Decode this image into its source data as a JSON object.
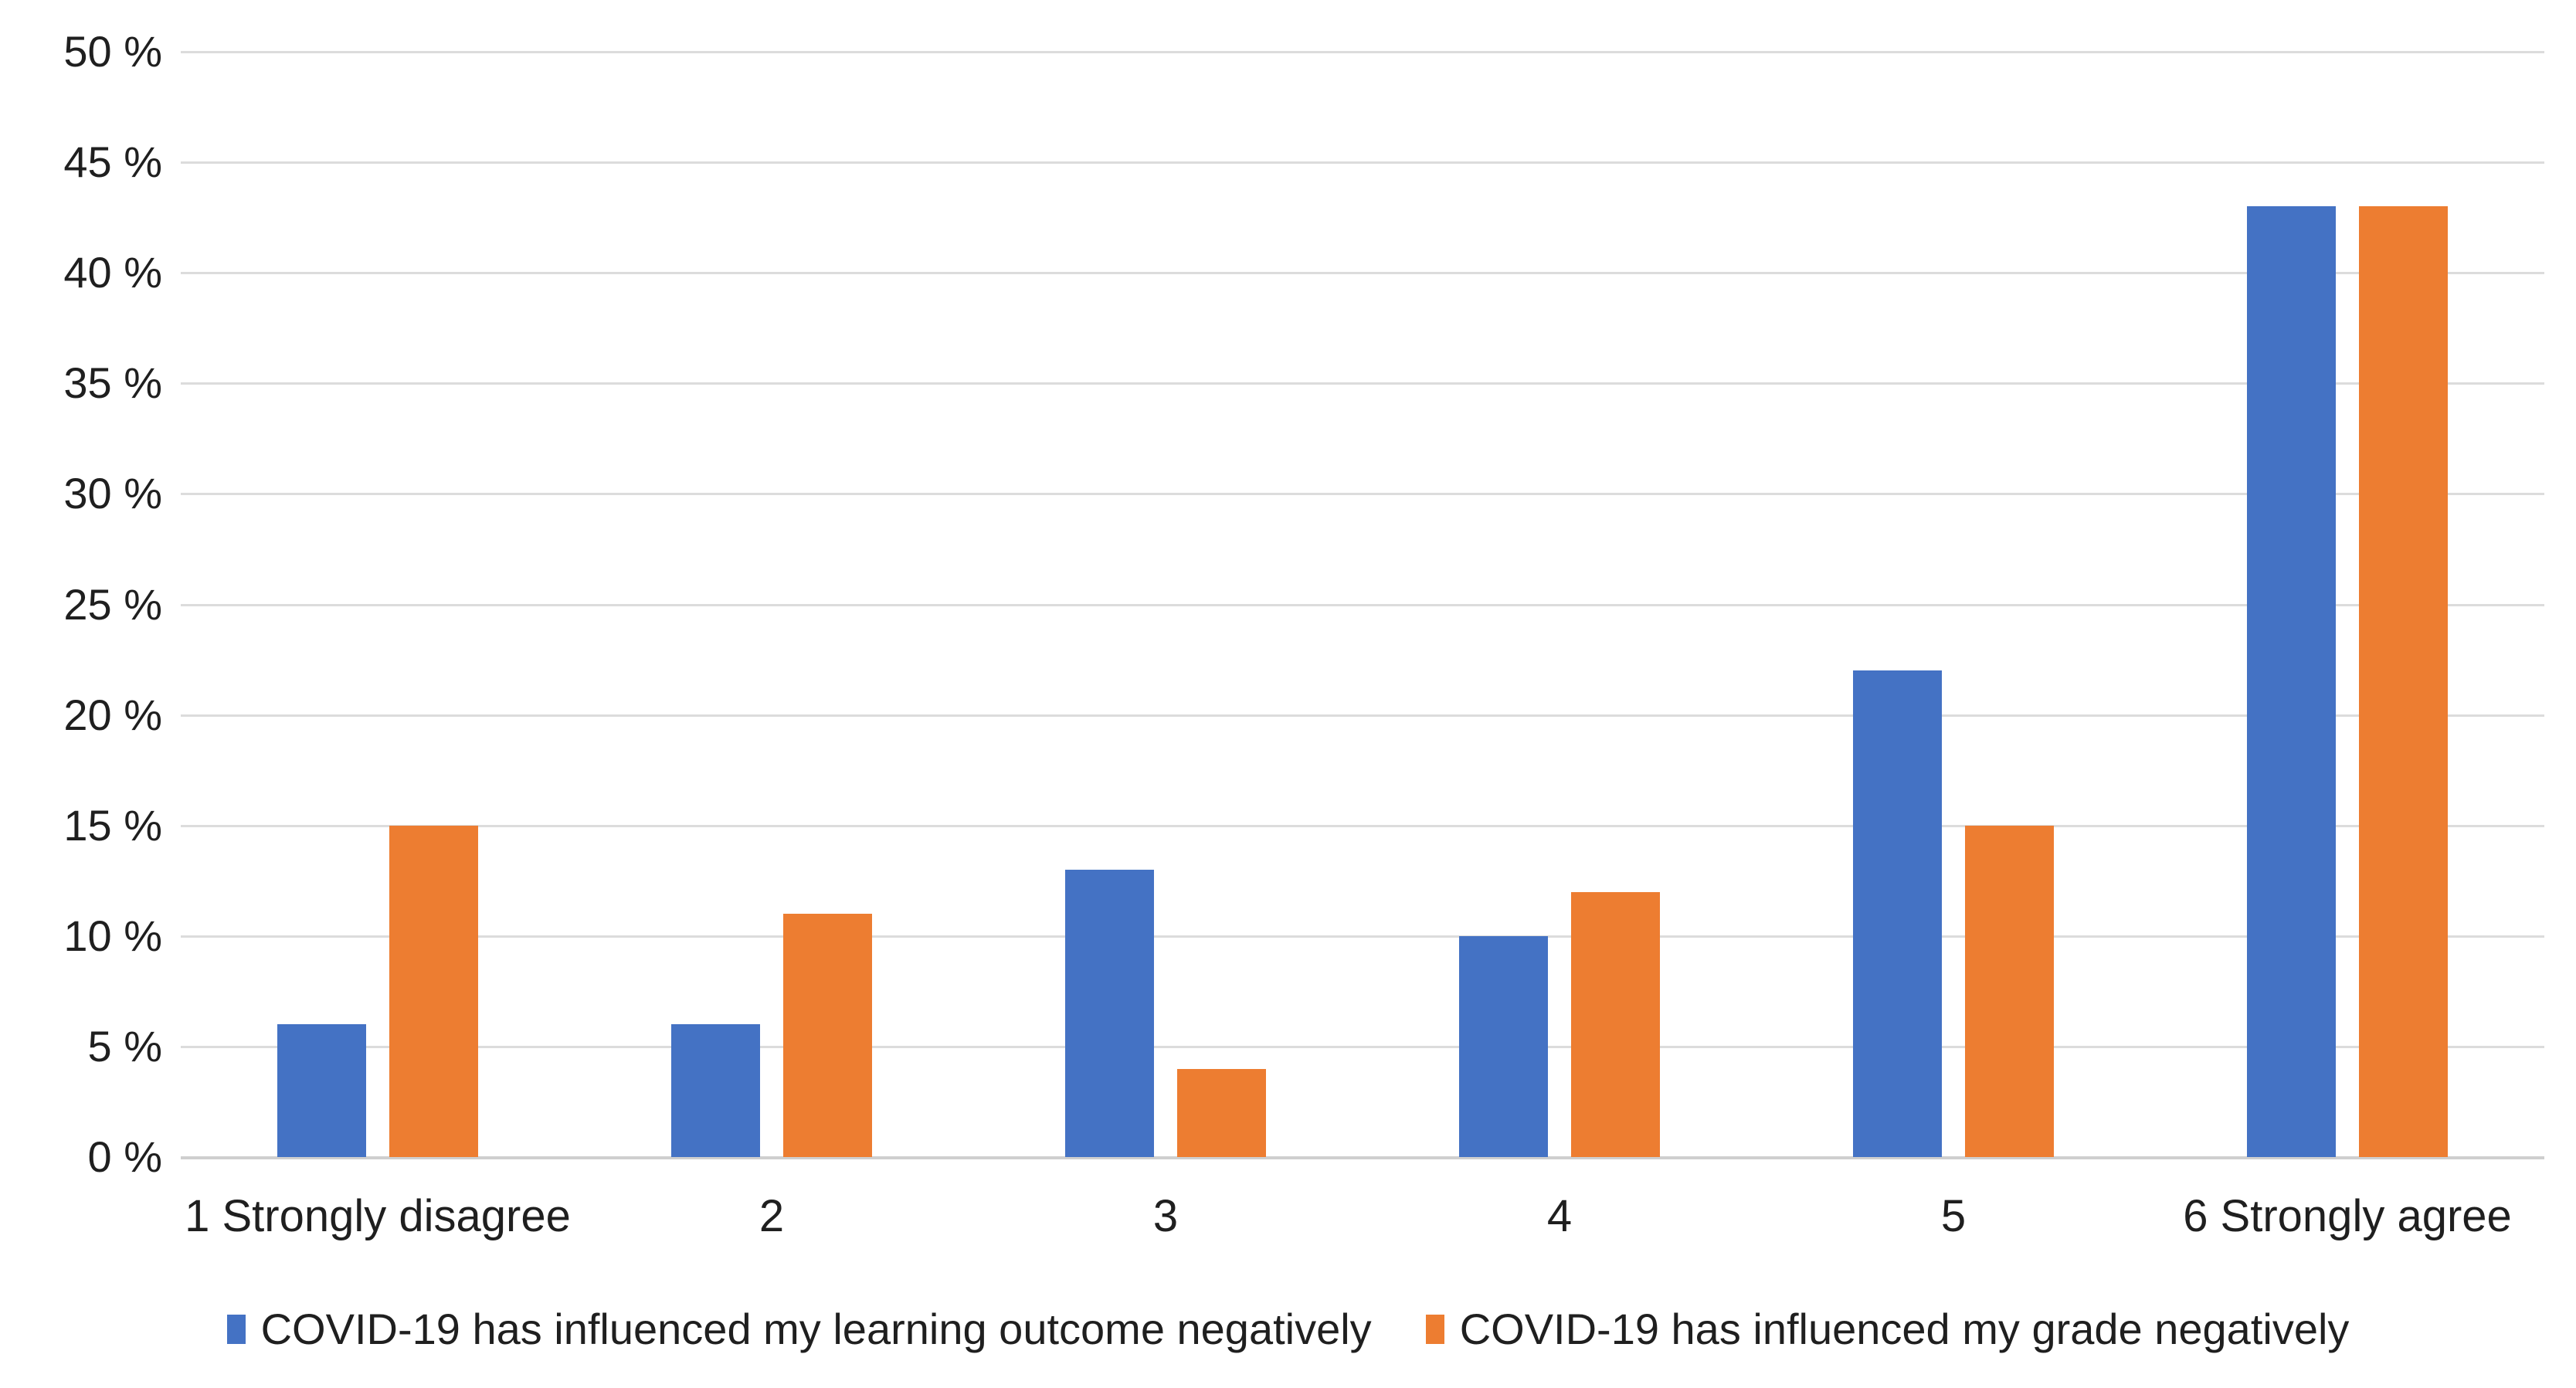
{
  "chart_data": {
    "type": "bar",
    "categories": [
      "1 Strongly disagree",
      "2",
      "3",
      "4",
      "5",
      "6 Strongly agree"
    ],
    "series": [
      {
        "name": "COVID-19 has influenced my learning outcome negatively",
        "color": "#4472C4",
        "values": [
          6,
          6,
          13,
          10,
          22,
          43
        ]
      },
      {
        "name": "COVID-19 has influenced my grade negatively",
        "color": "#ED7D31",
        "values": [
          15,
          11,
          4,
          12,
          15,
          43
        ]
      }
    ],
    "y_axis": {
      "min": 0,
      "max": 50,
      "step": 5,
      "tick_labels_top_to_bottom": [
        "50 %",
        "45 %",
        "40 %",
        "35 %",
        "30 %",
        "25 %",
        "20 %",
        "15 %",
        "10 %",
        "5 %",
        "0 %"
      ]
    },
    "title": "",
    "xlabel": "",
    "ylabel": "",
    "grid": true,
    "legend_position": "bottom",
    "colors": {
      "background": "#FFFFFF",
      "gridline": "#DCDCDC",
      "axis_line": "#CFCFCF",
      "text": "#1F1F1F"
    }
  }
}
